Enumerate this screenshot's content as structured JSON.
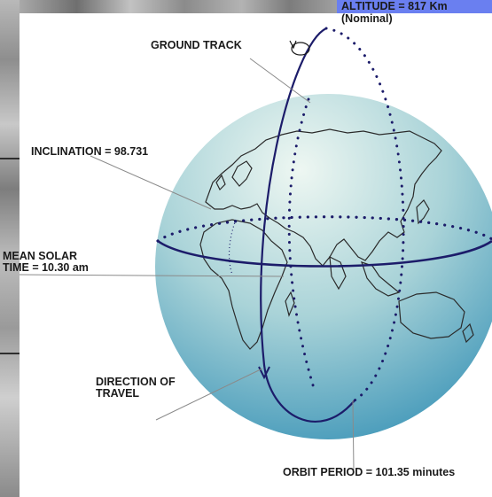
{
  "labels": {
    "altitude_line1": "ALTITUDE = 817 Km",
    "altitude_line2": "(Nominal)",
    "ground_track": "GROUND TRACK",
    "inclination": "INCLINATION = 98.731",
    "mean_solar_line1": "MEAN SOLAR",
    "mean_solar_line2": "TIME = 10.30 am",
    "direction_line1": "DIRECTION OF",
    "direction_line2": "TRAVEL",
    "orbit_period": "ORBIT PERIOD = 101.35 minutes"
  },
  "colors": {
    "globe_light": "#e6f2ee",
    "globe_dark": "#3f96b8",
    "orbit": "#1c1c6a",
    "accent_bar": "#6a7ff0"
  },
  "icons": [
    "rotation-arrow-icon",
    "direction-arrow-icon"
  ]
}
